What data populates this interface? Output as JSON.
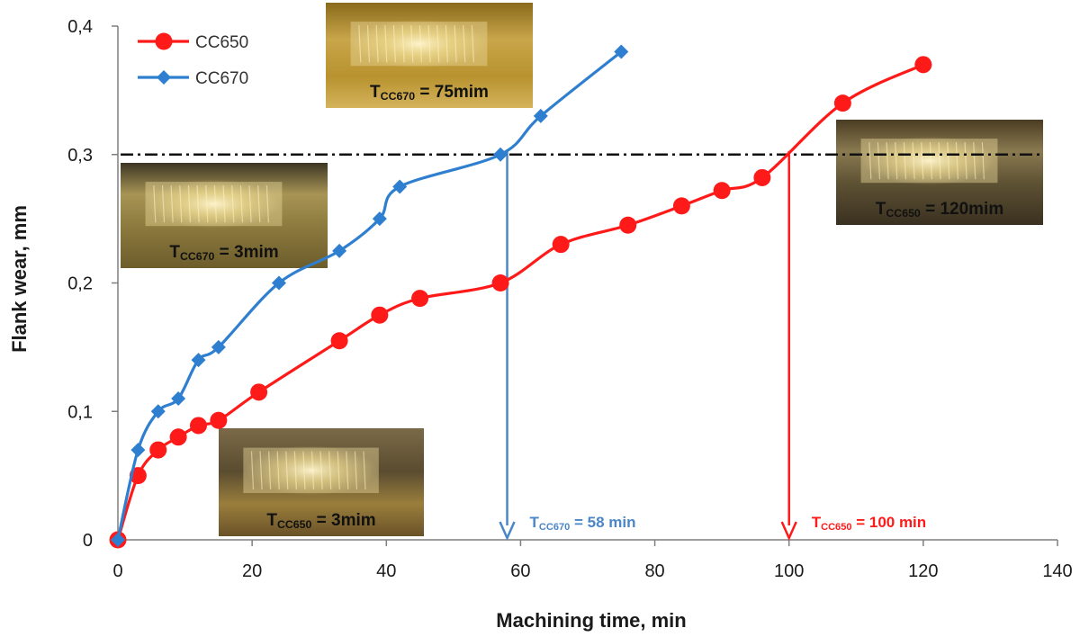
{
  "chart_data": {
    "type": "line",
    "xlabel": "Machining time, min",
    "ylabel": "Flank wear, mm",
    "xlim": [
      0,
      140
    ],
    "ylim": [
      0,
      0.4
    ],
    "xticks": [
      "0",
      "20",
      "40",
      "60",
      "80",
      "100",
      "120",
      "140"
    ],
    "yticks": [
      "0",
      "0,1",
      "0,2",
      "0,3",
      "0,4"
    ],
    "grid": false,
    "legend_position": "top-left",
    "series": [
      {
        "name": "CC650",
        "color": "#ff1a1a",
        "marker": "circle",
        "x": [
          0,
          3,
          6,
          9,
          12,
          15,
          21,
          33,
          39,
          45,
          57,
          66,
          76,
          84,
          90,
          96,
          108,
          120
        ],
        "y": [
          0,
          0.05,
          0.07,
          0.08,
          0.089,
          0.093,
          0.115,
          0.155,
          0.175,
          0.188,
          0.2,
          0.23,
          0.245,
          0.26,
          0.272,
          0.282,
          0.34,
          0.37
        ]
      },
      {
        "name": "CC670",
        "color": "#2f7fd0",
        "marker": "diamond",
        "x": [
          0,
          3,
          6,
          9,
          12,
          15,
          24,
          33,
          39,
          42,
          57,
          63,
          75
        ],
        "y": [
          0,
          0.07,
          0.1,
          0.11,
          0.14,
          0.15,
          0.2,
          0.225,
          0.25,
          0.275,
          0.3,
          0.33,
          0.38
        ]
      }
    ],
    "threshold": {
      "y": 0.3,
      "style": "dash-dot"
    },
    "tool_life_markers": [
      {
        "x": 58,
        "color": "#4a86c8",
        "prefix": "T",
        "sub": "CC670",
        "text": " = 58 min"
      },
      {
        "x": 100,
        "color": "#ff1a1a",
        "prefix": "T",
        "sub": "CC650",
        "text": " = 100 min"
      }
    ],
    "photos": [
      {
        "prefix": "T",
        "sub": "CC670",
        "text": " = 75mim",
        "palette": "gold"
      },
      {
        "prefix": "T",
        "sub": "CC650",
        "text": " = 120mim",
        "palette": "dark"
      },
      {
        "prefix": "T",
        "sub": "CC670",
        "text": " = 3mim",
        "palette": "olive"
      },
      {
        "prefix": "T",
        "sub": "CC650",
        "text": " = 3mim",
        "palette": "bronze"
      }
    ]
  }
}
